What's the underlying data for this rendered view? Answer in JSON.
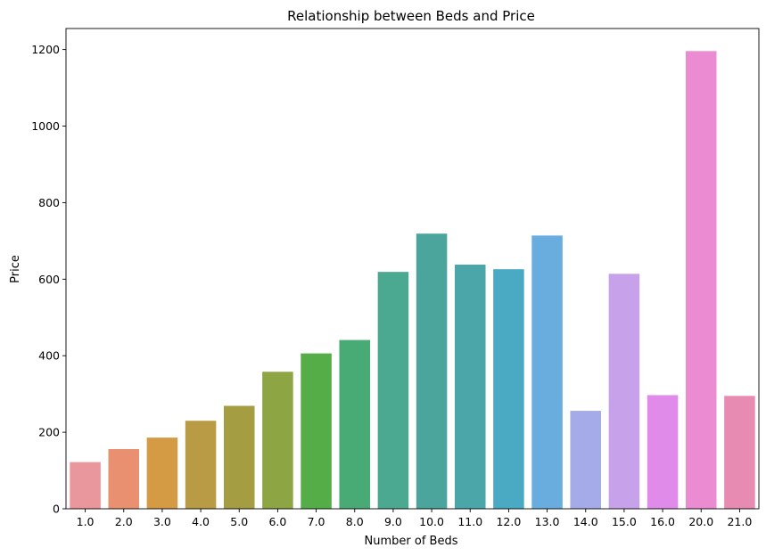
{
  "chart_data": {
    "type": "bar",
    "title": "Relationship between Beds and Price",
    "xlabel": "Number of Beds",
    "ylabel": "Price",
    "categories": [
      "1.0",
      "2.0",
      "3.0",
      "4.0",
      "5.0",
      "6.0",
      "7.0",
      "8.0",
      "9.0",
      "10.0",
      "11.0",
      "12.0",
      "13.0",
      "14.0",
      "15.0",
      "16.0",
      "20.0",
      "21.0"
    ],
    "values": [
      122,
      156,
      186,
      230,
      269,
      358,
      406,
      441,
      619,
      719,
      638,
      626,
      714,
      256,
      614,
      297,
      1196,
      295
    ],
    "colors": [
      "#e9969c",
      "#e8906f",
      "#d49a44",
      "#b99a45",
      "#a59d41",
      "#8da543",
      "#55ad48",
      "#48aa74",
      "#4ba891",
      "#4ba59d",
      "#4ba6a9",
      "#4baac3",
      "#69acde",
      "#a5abe8",
      "#c7a2eb",
      "#e08bea",
      "#eb8bd2",
      "#e88bb3"
    ],
    "yticks": [
      0,
      200,
      400,
      600,
      800,
      1000,
      1200
    ],
    "ylim": [
      0,
      1255
    ],
    "grid": false,
    "legend": "none"
  }
}
